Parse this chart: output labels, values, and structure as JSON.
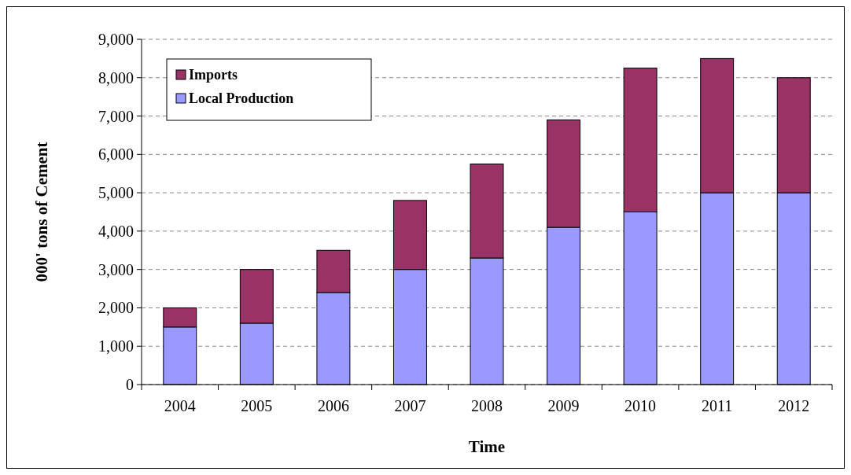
{
  "chart_data": {
    "type": "bar",
    "stacked": true,
    "xlabel": "Time",
    "ylabel": "000' tons of Cement",
    "categories": [
      "2004",
      "2005",
      "2006",
      "2007",
      "2008",
      "2009",
      "2010",
      "2011",
      "2012"
    ],
    "series": [
      {
        "name": "Local Production",
        "color": "#9999ff",
        "values": [
          1500,
          1600,
          2400,
          3000,
          3300,
          4100,
          4500,
          5000,
          5000
        ]
      },
      {
        "name": "Imports",
        "color": "#993366",
        "values": [
          500,
          1400,
          1100,
          1800,
          2450,
          2800,
          3750,
          3500,
          3000
        ]
      }
    ],
    "ylim": [
      0,
      9000
    ],
    "yticks": [
      {
        "value": 0,
        "label": "0"
      },
      {
        "value": 1000,
        "label": "1,000"
      },
      {
        "value": 2000,
        "label": "2,000"
      },
      {
        "value": 3000,
        "label": "3,000"
      },
      {
        "value": 4000,
        "label": "4,000"
      },
      {
        "value": 5000,
        "label": "5,000"
      },
      {
        "value": 6000,
        "label": "6,000"
      },
      {
        "value": 7000,
        "label": "7,000"
      },
      {
        "value": 8000,
        "label": "8,000"
      },
      {
        "value": 9000,
        "label": "9,000"
      }
    ],
    "grid": "y",
    "legend": "top left"
  }
}
